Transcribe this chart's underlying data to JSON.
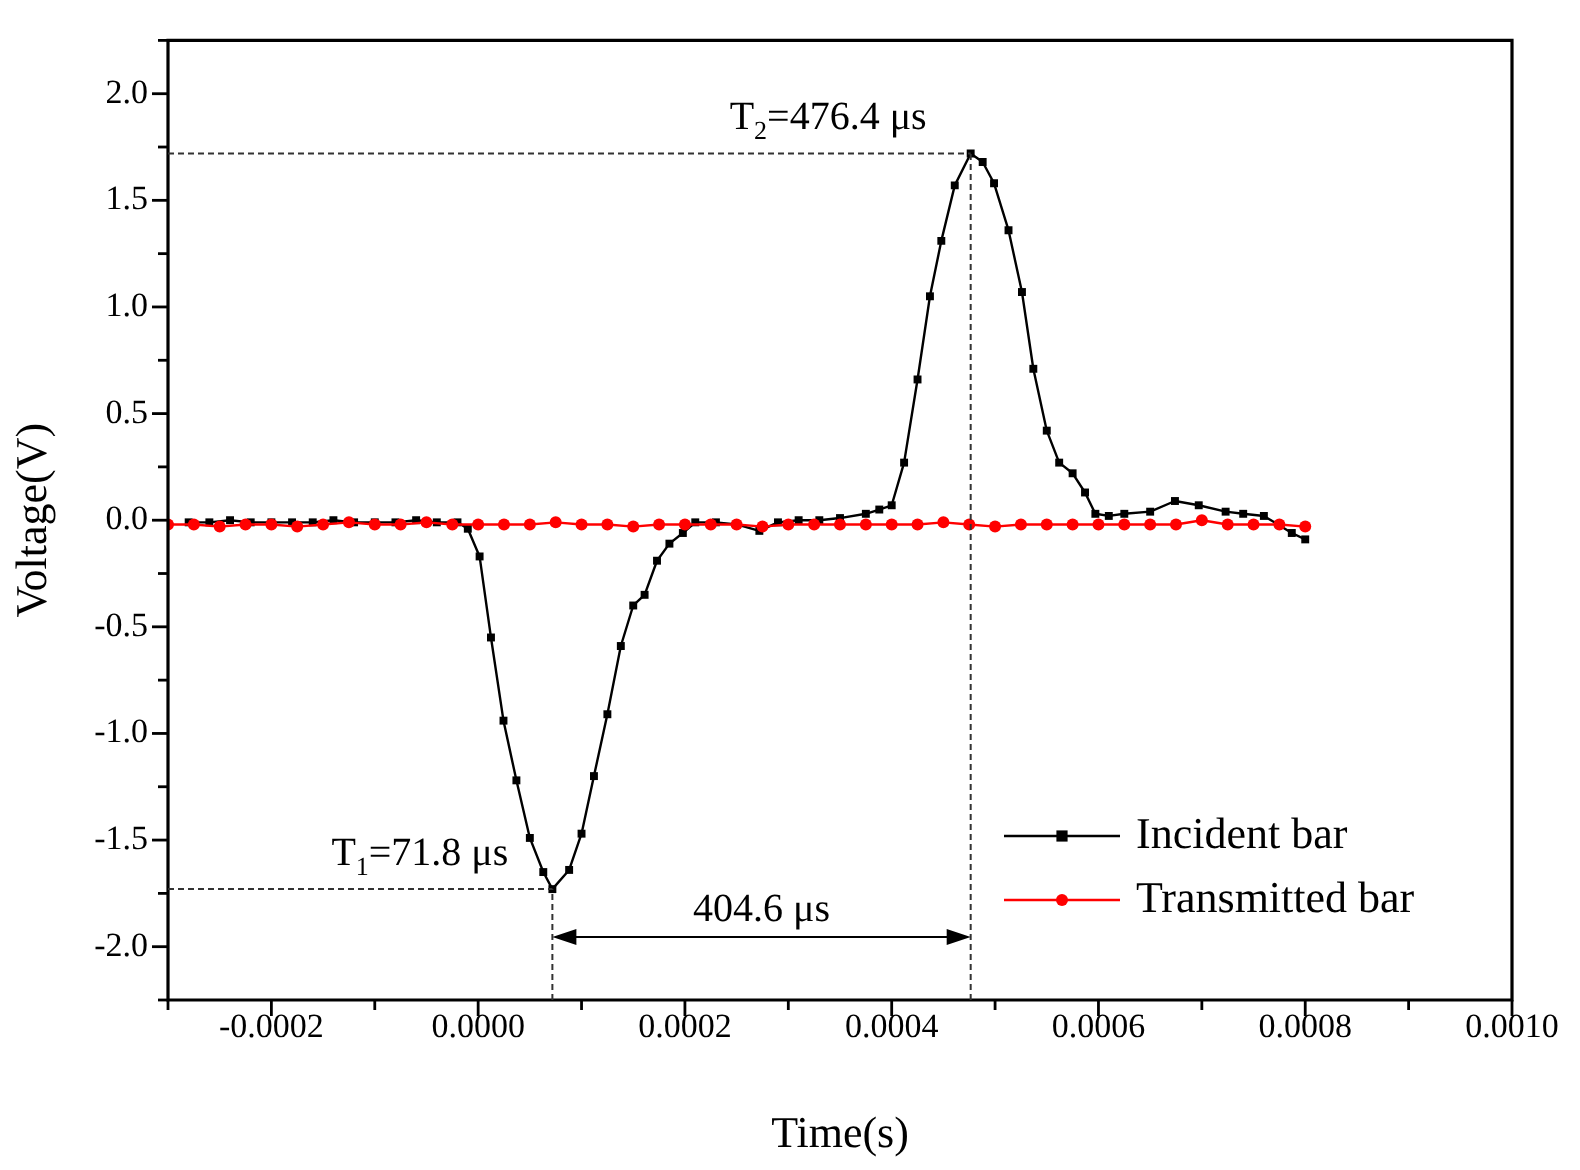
{
  "chart_data": {
    "type": "line",
    "xlabel": "Time(s)",
    "ylabel": "Voltage(V)",
    "xlim": [
      -0.0003,
      0.001
    ],
    "ylim": [
      -2.25,
      2.25
    ],
    "xticks": [
      {
        "value": -0.0003,
        "label": null
      },
      {
        "value": -0.0002,
        "label": "-0.0002"
      },
      {
        "value": -0.0001,
        "label": null
      },
      {
        "value": 0,
        "label": "0.0000"
      },
      {
        "value": 0.0001,
        "label": null
      },
      {
        "value": 0.0002,
        "label": "0.0002"
      },
      {
        "value": 0.0003,
        "label": null
      },
      {
        "value": 0.0004,
        "label": "0.0004"
      },
      {
        "value": 0.0005,
        "label": null
      },
      {
        "value": 0.0006,
        "label": "0.0006"
      },
      {
        "value": 0.0007,
        "label": null
      },
      {
        "value": 0.0008,
        "label": "0.0008"
      },
      {
        "value": 0.0009,
        "label": null
      },
      {
        "value": 0.001,
        "label": "0.0010"
      }
    ],
    "yticks": [
      {
        "value": -2.25,
        "label": null
      },
      {
        "value": -2,
        "label": "-2.0"
      },
      {
        "value": -1.75,
        "label": null
      },
      {
        "value": -1.5,
        "label": "-1.5"
      },
      {
        "value": -1.25,
        "label": null
      },
      {
        "value": -1,
        "label": "-1.0"
      },
      {
        "value": -0.75,
        "label": null
      },
      {
        "value": -0.5,
        "label": "-0.5"
      },
      {
        "value": -0.25,
        "label": null
      },
      {
        "value": 0,
        "label": "0.0"
      },
      {
        "value": 0.25,
        "label": null
      },
      {
        "value": 0.5,
        "label": "0.5"
      },
      {
        "value": 0.75,
        "label": null
      },
      {
        "value": 1,
        "label": "1.0"
      },
      {
        "value": 1.25,
        "label": null
      },
      {
        "value": 1.5,
        "label": "1.5"
      },
      {
        "value": 1.75,
        "label": null
      },
      {
        "value": 2,
        "label": "2.0"
      },
      {
        "value": 2.25,
        "label": null
      }
    ],
    "grid": false,
    "legend": "bottom right",
    "line_style": "solid",
    "series": [
      {
        "name": "Incident bar",
        "color": "#000000",
        "marker": "square",
        "x": [
          -0.00028,
          -0.00026,
          -0.00024,
          -0.00022,
          -0.0002,
          -0.00018,
          -0.00016,
          -0.00014,
          -0.00012,
          -0.0001,
          -8e-05,
          -6e-05,
          -4e-05,
          -2e-05,
          -1e-05,
          1.4e-06,
          1.24e-05,
          2.45e-05,
          3.7e-05,
          5e-05,
          6.3e-05,
          7.18e-05,
          8.8e-05,
          0.0001,
          0.000112,
          0.000125,
          0.000138,
          0.00015,
          0.000161,
          0.000173,
          0.000185,
          0.000198,
          0.00021,
          0.00023,
          0.00025,
          0.000272,
          0.00029,
          0.00031,
          0.00033,
          0.00035,
          0.000375,
          0.000388,
          0.0004,
          0.000412,
          0.000425,
          0.000437,
          0.000448,
          0.000461,
          0.0004764,
          0.000488,
          0.000499,
          0.000513,
          0.000526,
          0.000537,
          0.00055,
          0.000562,
          0.000575,
          0.000587,
          0.000597,
          0.00061,
          0.000625,
          0.00065,
          0.000674,
          0.000697,
          0.000723,
          0.00074,
          0.00076,
          0.000787,
          0.0008
        ],
        "values": [
          -0.01,
          -0.01,
          0.0,
          -0.01,
          -0.01,
          -0.01,
          -0.01,
          0.0,
          -0.01,
          -0.01,
          -0.01,
          0.0,
          -0.01,
          -0.01,
          -0.04,
          -0.17,
          -0.55,
          -0.94,
          -1.22,
          -1.49,
          -1.65,
          -1.73,
          -1.64,
          -1.47,
          -1.2,
          -0.91,
          -0.59,
          -0.4,
          -0.35,
          -0.19,
          -0.11,
          -0.06,
          -0.01,
          -0.01,
          -0.02,
          -0.05,
          -0.01,
          0.0,
          0.0,
          0.01,
          0.03,
          0.05,
          0.07,
          0.27,
          0.66,
          1.05,
          1.31,
          1.57,
          1.72,
          1.68,
          1.58,
          1.36,
          1.07,
          0.71,
          0.42,
          0.27,
          0.22,
          0.13,
          0.03,
          0.02,
          0.03,
          0.04,
          0.09,
          0.07,
          0.04,
          0.03,
          0.02,
          -0.06,
          -0.09
        ]
      },
      {
        "name": "Transmitted bar",
        "color": "#ff0000",
        "marker": "circle",
        "x": [
          -0.0003,
          -0.000275,
          -0.00025,
          -0.000225,
          -0.0002,
          -0.000175,
          -0.00015,
          -0.000125,
          -0.0001,
          -7.5e-05,
          -5e-05,
          -2.5e-05,
          0,
          2.5e-05,
          5e-05,
          7.5e-05,
          0.0001,
          0.000125,
          0.00015,
          0.000175,
          0.0002,
          0.000225,
          0.00025,
          0.000275,
          0.0003,
          0.000325,
          0.00035,
          0.000375,
          0.0004,
          0.000425,
          0.00045,
          0.000475,
          0.0005,
          0.000525,
          0.00055,
          0.000575,
          0.0006,
          0.000625,
          0.00065,
          0.000675,
          0.0007,
          0.000725,
          0.00075,
          0.000775,
          0.0008
        ],
        "values": [
          -0.02,
          -0.02,
          -0.03,
          -0.02,
          -0.02,
          -0.03,
          -0.02,
          -0.01,
          -0.02,
          -0.02,
          -0.01,
          -0.02,
          -0.02,
          -0.02,
          -0.02,
          -0.01,
          -0.02,
          -0.02,
          -0.03,
          -0.02,
          -0.02,
          -0.02,
          -0.02,
          -0.03,
          -0.02,
          -0.02,
          -0.02,
          -0.02,
          -0.02,
          -0.02,
          -0.01,
          -0.02,
          -0.03,
          -0.02,
          -0.02,
          -0.02,
          -0.02,
          -0.02,
          -0.02,
          -0.02,
          0.0,
          -0.02,
          -0.02,
          -0.02,
          -0.03
        ]
      }
    ],
    "ref_lines": [
      {
        "axis": "x",
        "value": 7.18e-05,
        "line_style": "dashed",
        "color": "#333333"
      },
      {
        "axis": "y",
        "value": -1.73,
        "line_style": "dashed",
        "color": "#333333"
      },
      {
        "axis": "x",
        "value": 0.0004764,
        "line_style": "dashed",
        "color": "#333333"
      },
      {
        "axis": "y",
        "value": 1.72,
        "line_style": "dashed",
        "color": "#333333"
      }
    ],
    "annotations": [
      {
        "text": "T$_{1}$=71.8 μs",
        "x": 7.18e-05,
        "y": -1.73
      },
      {
        "text": "T$_{2}$=476.4 μs",
        "x": 0.0004764,
        "y": 1.72
      },
      "404.6 μs"
    ]
  }
}
